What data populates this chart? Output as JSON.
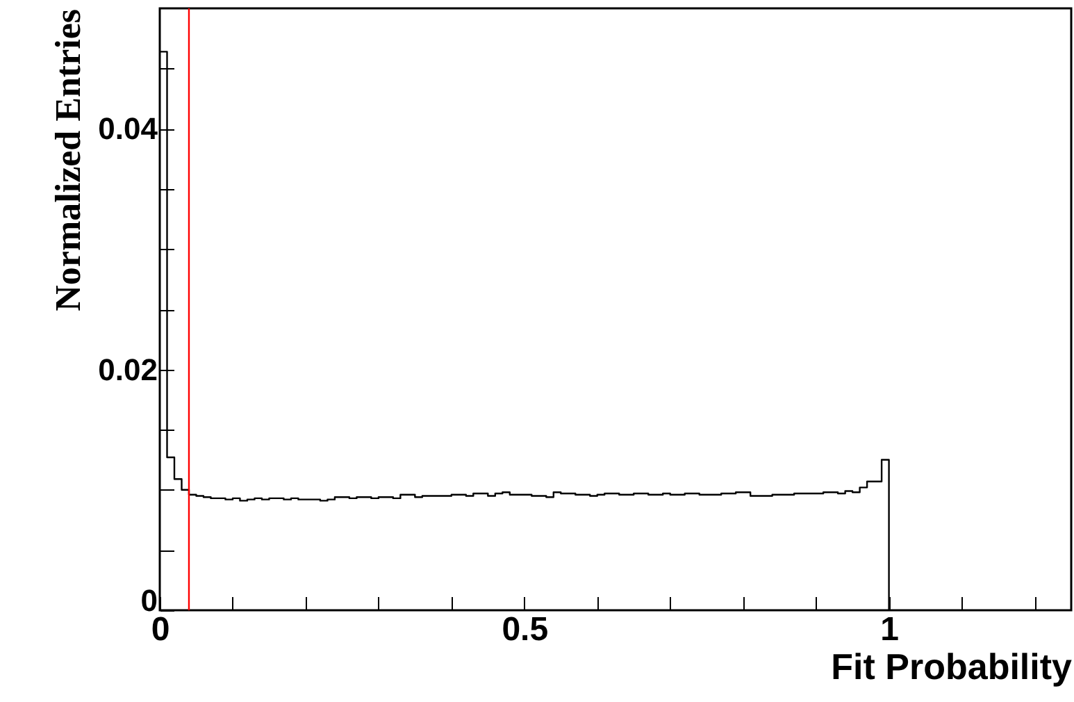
{
  "chart_data": {
    "type": "histogram",
    "xlabel": "Fit Probability",
    "ylabel": "Normalized Entries",
    "bins": [
      0,
      0.01,
      0.02,
      0.03,
      0.04,
      0.05,
      0.06,
      0.07,
      0.08,
      0.09,
      0.1,
      0.11,
      0.12,
      0.13,
      0.14,
      0.15,
      0.16,
      0.17,
      0.18,
      0.19,
      0.2,
      0.21,
      0.22,
      0.23,
      0.24,
      0.25,
      0.26,
      0.27,
      0.28,
      0.29,
      0.3,
      0.31,
      0.32,
      0.33,
      0.34,
      0.35,
      0.36,
      0.37,
      0.38,
      0.39,
      0.4,
      0.41,
      0.42,
      0.43,
      0.44,
      0.45,
      0.46,
      0.47,
      0.48,
      0.49,
      0.5,
      0.51,
      0.52,
      0.53,
      0.54,
      0.55,
      0.56,
      0.57,
      0.58,
      0.59,
      0.6,
      0.61,
      0.62,
      0.63,
      0.64,
      0.65,
      0.66,
      0.67,
      0.68,
      0.69,
      0.7,
      0.71,
      0.72,
      0.73,
      0.74,
      0.75,
      0.76,
      0.77,
      0.78,
      0.79,
      0.8,
      0.81,
      0.82,
      0.83,
      0.84,
      0.85,
      0.86,
      0.87,
      0.88,
      0.89,
      0.9,
      0.91,
      0.92,
      0.93,
      0.94,
      0.95,
      0.96,
      0.97,
      0.98,
      0.99,
      1
    ],
    "values": [
      0.0464,
      0.0127,
      0.0109,
      0.01,
      0.0096,
      0.0095,
      0.0094,
      0.0093,
      0.0093,
      0.0092,
      0.0093,
      0.0091,
      0.0092,
      0.0093,
      0.0092,
      0.0093,
      0.0093,
      0.0092,
      0.0093,
      0.0092,
      0.0092,
      0.0092,
      0.0091,
      0.0092,
      0.0094,
      0.0094,
      0.0093,
      0.0094,
      0.0094,
      0.0093,
      0.0094,
      0.0094,
      0.0093,
      0.0096,
      0.0096,
      0.0094,
      0.0095,
      0.0095,
      0.0095,
      0.0095,
      0.0096,
      0.0096,
      0.0095,
      0.0097,
      0.0097,
      0.0095,
      0.0097,
      0.0098,
      0.0096,
      0.0096,
      0.0096,
      0.0095,
      0.0095,
      0.0094,
      0.0098,
      0.0097,
      0.0097,
      0.0096,
      0.0096,
      0.0095,
      0.0096,
      0.0097,
      0.0097,
      0.0096,
      0.0096,
      0.0097,
      0.0097,
      0.0096,
      0.0096,
      0.0097,
      0.0096,
      0.0096,
      0.0097,
      0.0097,
      0.0096,
      0.0096,
      0.0096,
      0.0097,
      0.0097,
      0.0098,
      0.0098,
      0.0095,
      0.0095,
      0.0095,
      0.0096,
      0.0096,
      0.0096,
      0.0097,
      0.0097,
      0.0097,
      0.0097,
      0.0098,
      0.0098,
      0.0097,
      0.0099,
      0.0098,
      0.0102,
      0.0107,
      0.0107,
      0.0125
    ],
    "color": "#000000",
    "xlim": [
      0,
      1.25
    ],
    "xticks": [
      0,
      {
        "value": 0.1,
        "label": null
      },
      {
        "value": 0.2,
        "label": null
      },
      {
        "value": 0.3,
        "label": null
      },
      {
        "value": 0.4,
        "label": null
      },
      0.5,
      {
        "value": 0.6,
        "label": null
      },
      {
        "value": 0.7,
        "label": null
      },
      {
        "value": 0.8,
        "label": null
      },
      {
        "value": 0.9,
        "label": null
      },
      1,
      {
        "value": 1.1,
        "label": null
      },
      {
        "value": 1.2,
        "label": null
      }
    ],
    "ylim": [
      0,
      0.05
    ],
    "yticks": [
      0,
      {
        "value": 0.005,
        "label": null
      },
      {
        "value": 0.01,
        "label": null
      },
      {
        "value": 0.015,
        "label": null
      },
      0.02,
      {
        "value": 0.025,
        "label": null
      },
      {
        "value": 0.03,
        "label": null
      },
      {
        "value": 0.035,
        "label": null
      },
      0.04,
      {
        "value": 0.045,
        "label": null
      }
    ],
    "ref_lines": [
      {
        "axis": "x",
        "value": 0.04,
        "color": "#ff0000"
      }
    ],
    "grid": false
  }
}
